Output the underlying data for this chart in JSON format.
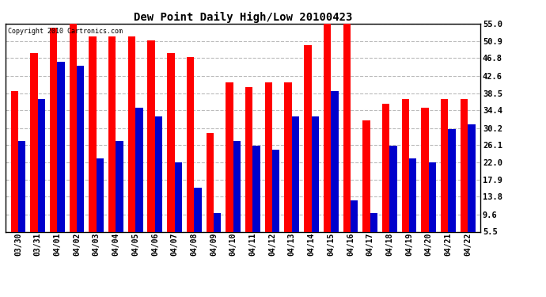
{
  "title": "Dew Point Daily High/Low 20100423",
  "copyright": "Copyright 2010 Cartronics.com",
  "dates": [
    "03/30",
    "03/31",
    "04/01",
    "04/02",
    "04/03",
    "04/04",
    "04/05",
    "04/06",
    "04/07",
    "04/08",
    "04/09",
    "04/10",
    "04/11",
    "04/12",
    "04/13",
    "04/14",
    "04/15",
    "04/16",
    "04/17",
    "04/18",
    "04/19",
    "04/20",
    "04/21",
    "04/22"
  ],
  "highs": [
    39.0,
    48.0,
    54.0,
    55.0,
    52.0,
    52.0,
    52.0,
    51.0,
    48.0,
    47.0,
    29.0,
    41.0,
    40.0,
    41.0,
    41.0,
    50.0,
    55.0,
    55.0,
    32.0,
    36.0,
    37.0,
    35.0,
    37.0,
    37.0
  ],
  "lows": [
    27.0,
    37.0,
    46.0,
    45.0,
    23.0,
    27.0,
    35.0,
    33.0,
    22.0,
    16.0,
    10.0,
    27.0,
    26.0,
    25.0,
    33.0,
    33.0,
    39.0,
    13.0,
    10.0,
    26.0,
    23.0,
    22.0,
    30.0,
    31.0
  ],
  "high_color": "#ff0000",
  "low_color": "#0000cc",
  "bg_color": "#ffffff",
  "grid_color": "#bbbbbb",
  "yticks": [
    5.5,
    9.6,
    13.8,
    17.9,
    22.0,
    26.1,
    30.2,
    34.4,
    38.5,
    42.6,
    46.8,
    50.9,
    55.0
  ],
  "ylim": [
    5.5,
    55.0
  ],
  "bar_width": 0.38
}
